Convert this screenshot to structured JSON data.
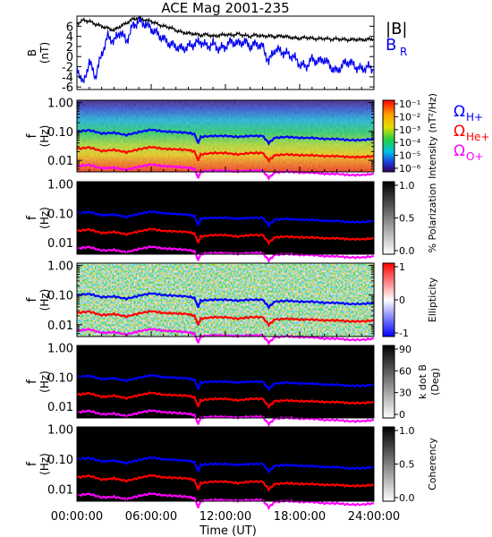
{
  "chart_data": {
    "title": "ACE Mag 2001-235",
    "type": "line",
    "x_axis": {
      "label": "Time (UT)",
      "ticks": [
        "00:00:00",
        "06:00:00",
        "12:00:00",
        "18:00:00",
        "24:00:00"
      ],
      "range_hours": [
        0,
        24
      ]
    },
    "panels": [
      {
        "type": "line",
        "ylabel": [
          "B",
          "(nT)"
        ],
        "yticks": [
          "6",
          "4",
          "2",
          "0",
          "-2",
          "-4",
          "-6"
        ],
        "ylim": [
          -6.5,
          8
        ],
        "series": [
          {
            "name": "|B|",
            "color": "#000000",
            "x": [
              0,
              0.5,
              1,
              1.5,
              2,
              2.5,
              3,
              3.5,
              4,
              4.5,
              5,
              5.5,
              6,
              6.5,
              7,
              7.5,
              8,
              8.5,
              9,
              9.5,
              10,
              10.5,
              11,
              11.5,
              12,
              12.5,
              13,
              13.5,
              14,
              14.5,
              15,
              15.5,
              16,
              16.5,
              17,
              17.5,
              18,
              18.5,
              19,
              19.5,
              20,
              20.5,
              21,
              21.5,
              22,
              22.5,
              23,
              23.5,
              24
            ],
            "y": [
              6.5,
              7.2,
              7.0,
              6.4,
              6.0,
              5.6,
              5.2,
              6.0,
              6.6,
              7.4,
              7.6,
              7.2,
              7.0,
              6.4,
              6.0,
              5.8,
              5.2,
              4.8,
              4.6,
              4.5,
              4.2,
              4.4,
              4.0,
              4.2,
              4.4,
              4.2,
              4.5,
              4.2,
              4.0,
              4.3,
              4.0,
              4.1,
              3.9,
              4.1,
              3.9,
              3.7,
              3.6,
              3.8,
              3.6,
              3.5,
              3.6,
              3.4,
              3.5,
              3.4,
              3.3,
              3.4,
              3.3,
              3.4,
              3.5
            ]
          },
          {
            "name": "B_R",
            "color": "#0000ee",
            "x": [
              0,
              0.5,
              1,
              1.5,
              2,
              2.5,
              3,
              3.5,
              4,
              4.5,
              5,
              5.5,
              6,
              6.5,
              7,
              7.5,
              8,
              8.5,
              9,
              9.5,
              10,
              10.5,
              11,
              11.5,
              12,
              12.5,
              13,
              13.5,
              14,
              14.5,
              15,
              15.5,
              16,
              16.5,
              17,
              17.5,
              18,
              18.5,
              19,
              19.5,
              20,
              20.5,
              21,
              21.5,
              22,
              22.5,
              23,
              23.5,
              24
            ],
            "y": [
              -2,
              -5.5,
              -1,
              -4,
              0.5,
              4,
              3,
              5,
              3,
              6,
              7,
              6.5,
              5.5,
              4.5,
              3.5,
              2.5,
              2,
              1.5,
              2,
              2.5,
              3,
              2,
              2.5,
              1.5,
              2,
              3,
              2.5,
              3,
              2,
              2.5,
              2,
              -1,
              1.5,
              1,
              0.5,
              0,
              -1.5,
              -2,
              -0.5,
              -1,
              -0.5,
              -2,
              -3,
              -1.5,
              -1,
              -2,
              -2.5,
              -2,
              -2.5
            ]
          }
        ]
      },
      {
        "type": "heatmap",
        "ylabel": [
          "f",
          "(Hz)"
        ],
        "yticks": [
          "1.00",
          "0.10",
          "0.01"
        ],
        "colorbar": {
          "label": "Intensity (nT²/Hz)",
          "ticks": [
            "10⁻¹",
            "10⁻²",
            "10⁻³",
            "10⁻⁴",
            "10⁻⁵",
            "10⁻⁶"
          ]
        }
      },
      {
        "type": "heatmap",
        "ylabel": [
          "f",
          "(Hz)"
        ],
        "yticks": [
          "1.00",
          "0.10",
          "0.01"
        ],
        "colorbar": {
          "label": "% Polarization",
          "ticks": [
            "1.0",
            "0.5",
            "0.0"
          ]
        }
      },
      {
        "type": "heatmap",
        "ylabel": [
          "f",
          "(Hz)"
        ],
        "yticks": [
          "1.00",
          "0.10",
          "0.01"
        ],
        "colorbar": {
          "label": "Ellipticity",
          "ticks": [
            "1",
            "0",
            "-1"
          ]
        }
      },
      {
        "type": "heatmap",
        "ylabel": [
          "f",
          "(Hz)"
        ],
        "yticks": [
          "1.00",
          "0.10",
          "0.01"
        ],
        "colorbar": {
          "label": [
            "k dot B",
            "(Deg)"
          ],
          "ticks": [
            "90",
            "60",
            "30",
            "0"
          ]
        }
      },
      {
        "type": "heatmap",
        "ylabel": [
          "f",
          "(Hz)"
        ],
        "yticks": [
          "1.00",
          "0.10",
          "0.01"
        ],
        "colorbar": {
          "label": "Coherency",
          "ticks": [
            "1.0",
            "0.5",
            "0.0"
          ]
        }
      }
    ],
    "gyrofrequencies": [
      {
        "name": "Ω_H+",
        "label": "Ω",
        "sub": "H+",
        "color": "#0000ff",
        "x": [
          0,
          1,
          2,
          3,
          4,
          5,
          6,
          7,
          8,
          9,
          9.5,
          9.8,
          10,
          11,
          12,
          13,
          14,
          15,
          15.5,
          16,
          17,
          18,
          19,
          20,
          21,
          22,
          23,
          24
        ],
        "y": [
          0.1,
          0.11,
          0.085,
          0.09,
          0.075,
          0.095,
          0.115,
          0.1,
          0.095,
          0.09,
          0.08,
          0.04,
          0.065,
          0.07,
          0.07,
          0.065,
          0.07,
          0.07,
          0.04,
          0.06,
          0.065,
          0.06,
          0.06,
          0.055,
          0.055,
          0.05,
          0.05,
          0.055
        ]
      },
      {
        "name": "Ω_He+",
        "label": "Ω",
        "sub": "He+",
        "color": "#ff0000",
        "x": [
          0,
          1,
          2,
          3,
          4,
          5,
          6,
          7,
          8,
          9,
          9.5,
          9.8,
          10,
          11,
          12,
          13,
          14,
          15,
          15.5,
          16,
          17,
          18,
          19,
          20,
          21,
          22,
          23,
          24
        ],
        "y": [
          0.025,
          0.028,
          0.021,
          0.023,
          0.019,
          0.024,
          0.029,
          0.025,
          0.024,
          0.023,
          0.02,
          0.01,
          0.016,
          0.018,
          0.018,
          0.016,
          0.018,
          0.018,
          0.01,
          0.015,
          0.016,
          0.015,
          0.015,
          0.014,
          0.014,
          0.013,
          0.013,
          0.014
        ]
      },
      {
        "name": "Ω_O+",
        "label": "Ω",
        "sub": "O+",
        "color": "#ff00ff",
        "x": [
          0,
          1,
          2,
          3,
          4,
          5,
          6,
          7,
          8,
          9,
          9.5,
          9.8,
          10,
          11,
          12,
          13,
          14,
          15,
          15.5,
          16,
          17,
          18,
          19,
          20,
          21,
          22,
          23,
          24
        ],
        "y": [
          0.0063,
          0.007,
          0.0053,
          0.0056,
          0.0047,
          0.006,
          0.0072,
          0.0063,
          0.006,
          0.0056,
          0.005,
          0.0025,
          0.0041,
          0.0044,
          0.0044,
          0.0041,
          0.0044,
          0.0044,
          0.0025,
          0.0038,
          0.0041,
          0.0038,
          0.0038,
          0.0034,
          0.0034,
          0.0031,
          0.0031,
          0.0034
        ]
      }
    ],
    "legend": {
      "top_panel": [
        "|B|",
        "B",
        "R"
      ]
    }
  }
}
